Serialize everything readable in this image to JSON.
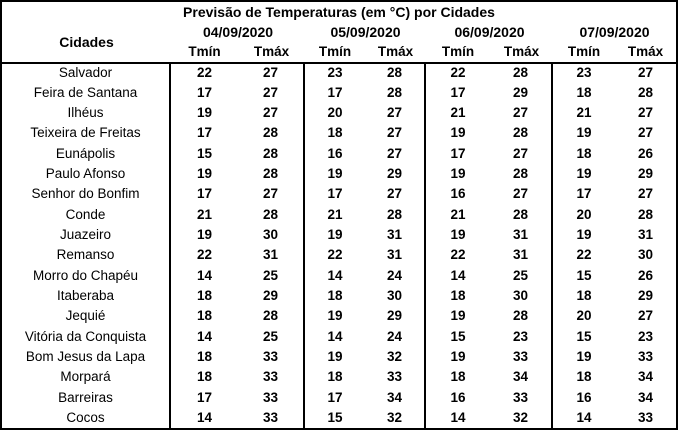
{
  "chart_data": {
    "type": "table",
    "title": "Previsão de Temperaturas (em °C) por Cidades",
    "row_header": "Cidades",
    "column_groups": [
      "04/09/2020",
      "05/09/2020",
      "06/09/2020",
      "07/09/2020"
    ],
    "sub_columns": [
      "Tmín",
      "Tmáx"
    ],
    "rows": [
      {
        "city": "Salvador",
        "temps": [
          22,
          27,
          23,
          28,
          22,
          28,
          23,
          27
        ]
      },
      {
        "city": "Feira de Santana",
        "temps": [
          17,
          27,
          17,
          28,
          17,
          29,
          18,
          28
        ]
      },
      {
        "city": "Ilhéus",
        "temps": [
          19,
          27,
          20,
          27,
          21,
          27,
          21,
          27
        ]
      },
      {
        "city": "Teixeira de Freitas",
        "temps": [
          17,
          28,
          18,
          27,
          19,
          28,
          19,
          27
        ]
      },
      {
        "city": "Eunápolis",
        "temps": [
          15,
          28,
          16,
          27,
          17,
          27,
          18,
          26
        ]
      },
      {
        "city": "Paulo Afonso",
        "temps": [
          19,
          28,
          19,
          29,
          19,
          28,
          19,
          29
        ]
      },
      {
        "city": "Senhor do Bonfim",
        "temps": [
          17,
          27,
          17,
          27,
          16,
          27,
          17,
          27
        ]
      },
      {
        "city": "Conde",
        "temps": [
          21,
          28,
          21,
          28,
          21,
          28,
          20,
          28
        ]
      },
      {
        "city": "Juazeiro",
        "temps": [
          19,
          30,
          19,
          31,
          19,
          31,
          19,
          31
        ]
      },
      {
        "city": "Remanso",
        "temps": [
          22,
          31,
          22,
          31,
          22,
          31,
          22,
          30
        ]
      },
      {
        "city": "Morro do Chapéu",
        "temps": [
          14,
          25,
          14,
          24,
          14,
          25,
          15,
          26
        ]
      },
      {
        "city": "Itaberaba",
        "temps": [
          18,
          29,
          18,
          30,
          18,
          30,
          18,
          29
        ]
      },
      {
        "city": "Jequié",
        "temps": [
          18,
          28,
          19,
          29,
          19,
          28,
          20,
          27
        ]
      },
      {
        "city": "Vitória da Conquista",
        "temps": [
          14,
          25,
          14,
          24,
          15,
          23,
          15,
          23
        ]
      },
      {
        "city": "Bom Jesus da Lapa",
        "temps": [
          18,
          33,
          19,
          32,
          19,
          33,
          19,
          33
        ]
      },
      {
        "city": "Morpará",
        "temps": [
          18,
          33,
          18,
          33,
          18,
          34,
          18,
          34
        ]
      },
      {
        "city": "Barreiras",
        "temps": [
          17,
          33,
          17,
          34,
          16,
          33,
          16,
          34
        ]
      },
      {
        "city": "Cocos",
        "temps": [
          14,
          33,
          15,
          32,
          14,
          32,
          14,
          33
        ]
      }
    ],
    "layout": {
      "grid_lines": "vertical separators between city column and each date group in data area only",
      "header_separator": true
    }
  },
  "colors": {
    "border": "#000000",
    "text": "#000000",
    "background": "#ffffff"
  }
}
